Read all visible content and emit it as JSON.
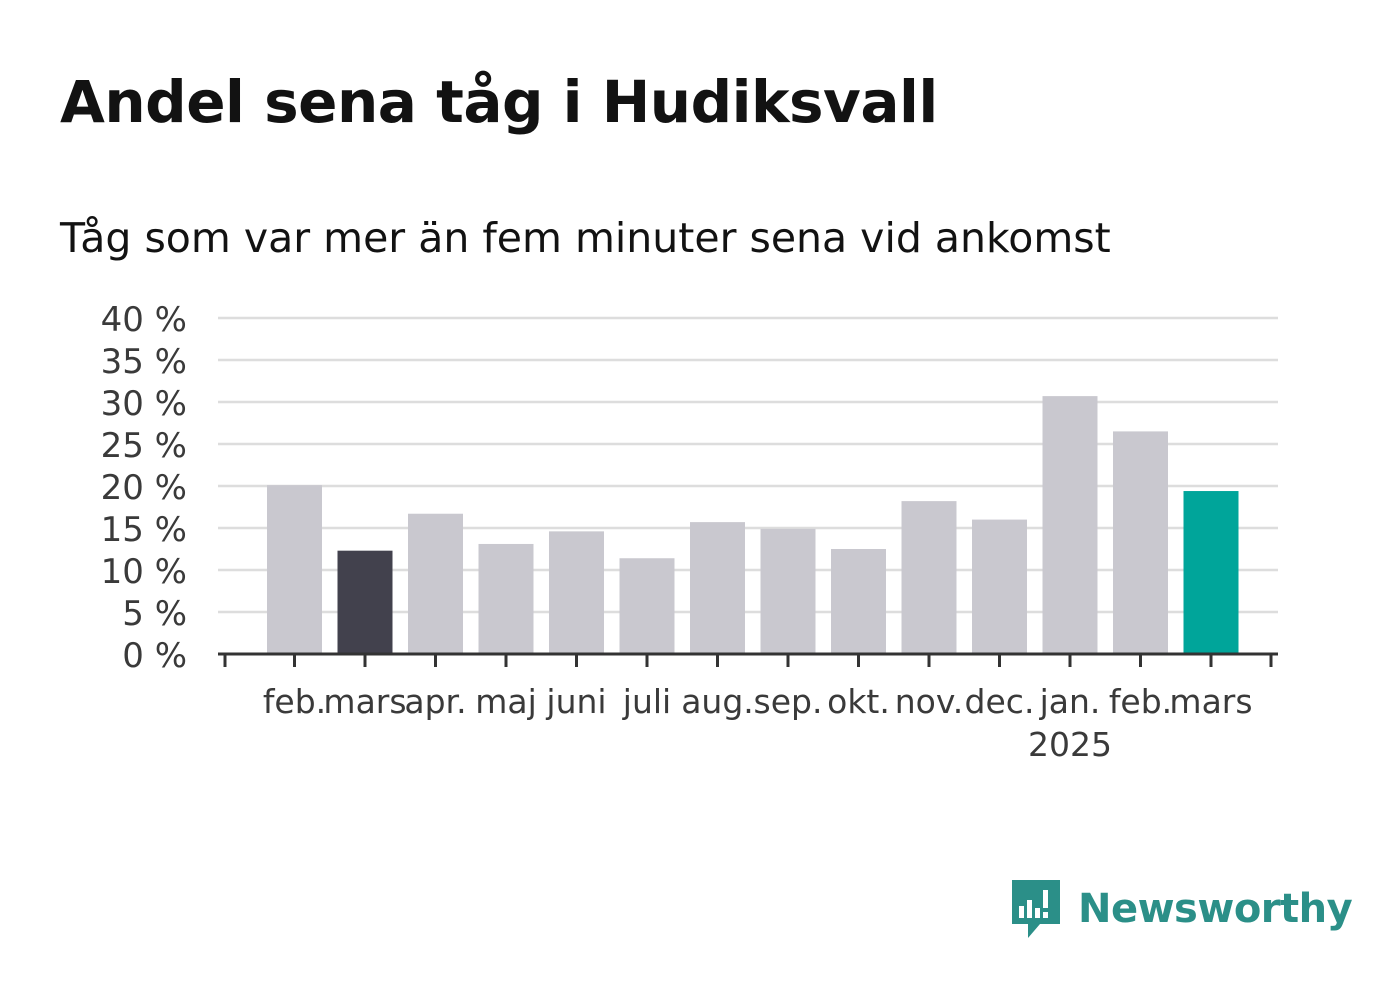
{
  "title": "Andel sena tåg i Hudiksvall",
  "subtitle": "Tåg som var mer än fem minuter sena vid ankomst",
  "brand": {
    "name": "Newsworthy",
    "icon": "newsworthy-logo-icon",
    "color": "#2b8f88"
  },
  "colors": {
    "default_bar": "#c9c8cf",
    "last_year_bar": "#42414d",
    "current_bar": "#00a59a",
    "gridline": "#dddddd",
    "axis": "#333333"
  },
  "chart_data": {
    "type": "bar",
    "categories": [
      "feb.",
      "mars",
      "apr.",
      "maj",
      "juni",
      "juli",
      "aug.",
      "sep.",
      "okt.",
      "nov.",
      "dec.",
      "jan.",
      "feb.",
      "mars"
    ],
    "category_sublabels": [
      "",
      "",
      "",
      "",
      "",
      "",
      "",
      "",
      "",
      "",
      "",
      "2025",
      "",
      ""
    ],
    "values": [
      20.1,
      12.3,
      16.7,
      13.1,
      14.6,
      11.4,
      15.7,
      14.9,
      12.5,
      18.2,
      16.0,
      30.7,
      26.5,
      19.4
    ],
    "highlight": [
      "default",
      "last_year",
      "default",
      "default",
      "default",
      "default",
      "default",
      "default",
      "default",
      "default",
      "default",
      "default",
      "default",
      "current"
    ],
    "ylim": [
      0,
      40
    ],
    "yticks": [
      0,
      5,
      10,
      15,
      20,
      25,
      30,
      35,
      40
    ],
    "ytick_labels": [
      "0 %",
      "5 %",
      "10 %",
      "15 %",
      "20 %",
      "25 %",
      "30 %",
      "35 %",
      "40 %"
    ],
    "grid": true,
    "xlabel": "",
    "ylabel": ""
  }
}
